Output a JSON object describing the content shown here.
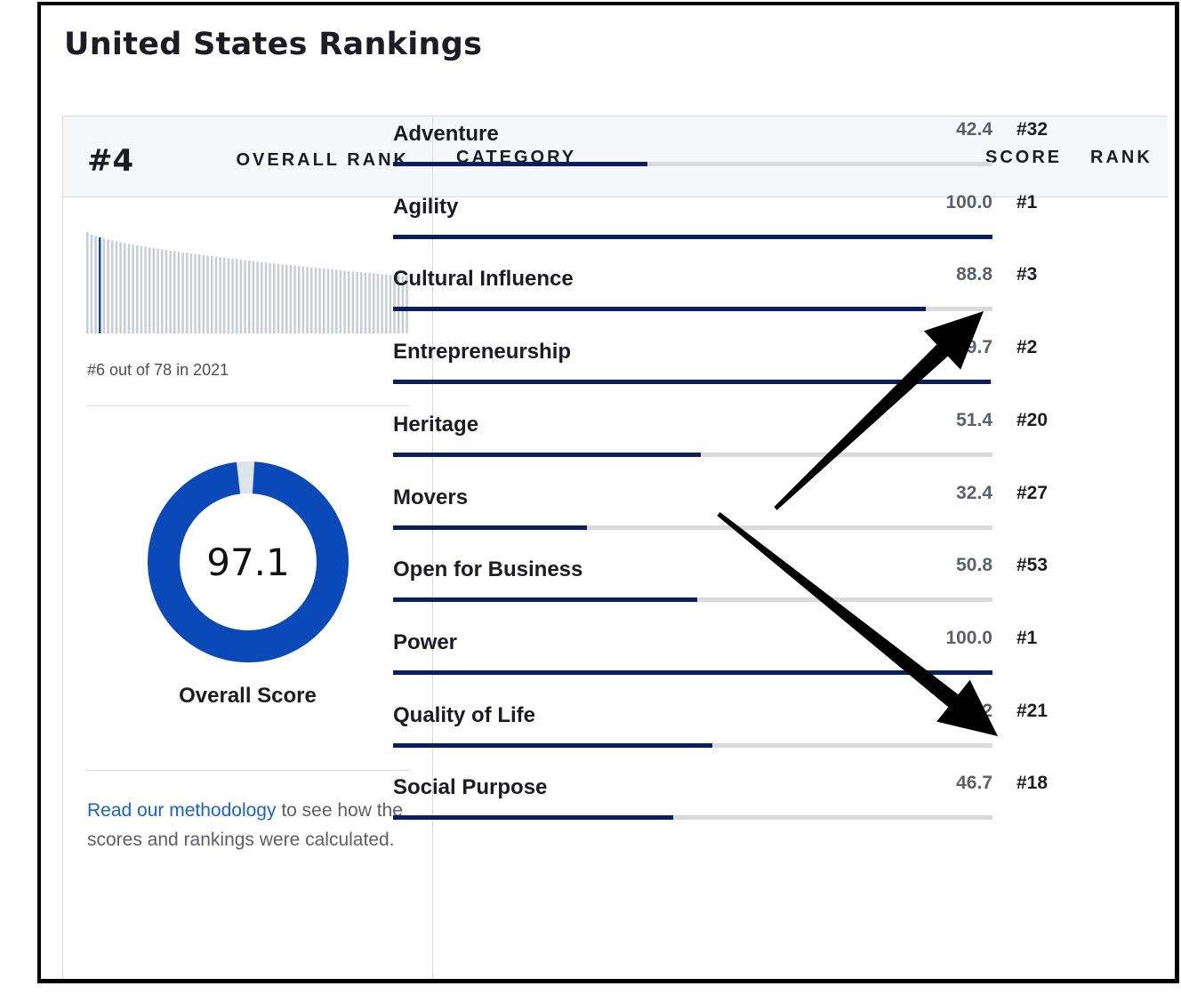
{
  "page": {
    "title": "United States Rankings"
  },
  "overall": {
    "rank": "#4",
    "rank_label": "OVERALL RANK",
    "history_caption": "#6 out of 78 in 2021",
    "score": 97.1,
    "score_text": "97.1",
    "score_label": "Overall Score",
    "highlight_index": 3,
    "donut_color": "#0b49b8",
    "donut_track_color": "#dfe3ea"
  },
  "sparkline": {
    "bar_count": 78,
    "bar_color": "#c8ccd3",
    "highlight_color": "#0b49b8"
  },
  "methodology": {
    "link_text": "Read our methodology",
    "rest_text": " to see how the scores and rankings were calculated."
  },
  "table": {
    "header_category": "CATEGORY",
    "header_score": "SCORE",
    "header_rank": "RANK",
    "rows": [
      {
        "category": "Adventure",
        "score": "42.4",
        "rank": "#32",
        "value": 42.4
      },
      {
        "category": "Agility",
        "score": "100.0",
        "rank": "#1",
        "value": 100.0
      },
      {
        "category": "Cultural Influence",
        "score": "88.8",
        "rank": "#3",
        "value": 88.8
      },
      {
        "category": "Entrepreneurship",
        "score": "99.7",
        "rank": "#2",
        "value": 99.7
      },
      {
        "category": "Heritage",
        "score": "51.4",
        "rank": "#20",
        "value": 51.4
      },
      {
        "category": "Movers",
        "score": "32.4",
        "rank": "#27",
        "value": 32.4
      },
      {
        "category": "Open for Business",
        "score": "50.8",
        "rank": "#53",
        "value": 50.8
      },
      {
        "category": "Power",
        "score": "100.0",
        "rank": "#1",
        "value": 100.0
      },
      {
        "category": "Quality of Life",
        "score": "53.2",
        "rank": "#21",
        "value": 53.2
      },
      {
        "category": "Social Purpose",
        "score": "46.7",
        "rank": "#18",
        "value": 46.7
      }
    ]
  },
  "annotations": {
    "arrow_color": "#000000",
    "arrow_count": 2
  }
}
